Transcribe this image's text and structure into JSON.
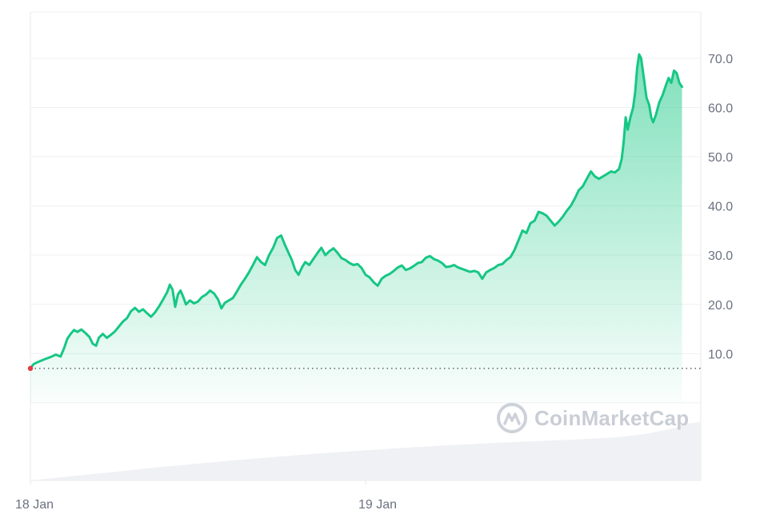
{
  "chart_data": {
    "type": "area",
    "title": "",
    "xlabel": "",
    "ylabel": "",
    "x_ticks": [
      "18 Jan",
      "19 Jan"
    ],
    "y_ticks": [
      10.0,
      20.0,
      30.0,
      40.0,
      50.0,
      60.0,
      70.0
    ],
    "y_tick_labels": [
      "10.0",
      "20.0",
      "30.0",
      "40.0",
      "50.0",
      "60.0",
      "70.0"
    ],
    "ylim": [
      -1.8,
      79.4
    ],
    "xlim": [
      0,
      100
    ],
    "reference_line": 7.0,
    "grid": true,
    "legend": "none",
    "series": [
      {
        "values": [
          [
            0.0,
            7.0
          ],
          [
            0.5,
            7.9
          ],
          [
            1.3,
            8.4
          ],
          [
            2.2,
            8.9
          ],
          [
            3.0,
            9.3
          ],
          [
            3.8,
            9.8
          ],
          [
            4.5,
            9.4
          ],
          [
            5.0,
            11.0
          ],
          [
            5.5,
            13.0
          ],
          [
            6.0,
            14.0
          ],
          [
            6.5,
            14.8
          ],
          [
            7.0,
            14.4
          ],
          [
            7.6,
            14.9
          ],
          [
            8.2,
            14.2
          ],
          [
            8.8,
            13.4
          ],
          [
            9.3,
            12.0
          ],
          [
            9.8,
            11.6
          ],
          [
            10.2,
            13.2
          ],
          [
            10.8,
            14.0
          ],
          [
            11.4,
            13.2
          ],
          [
            12.0,
            13.8
          ],
          [
            12.6,
            14.5
          ],
          [
            13.2,
            15.5
          ],
          [
            13.8,
            16.5
          ],
          [
            14.4,
            17.2
          ],
          [
            15.0,
            18.6
          ],
          [
            15.6,
            19.3
          ],
          [
            16.2,
            18.5
          ],
          [
            16.8,
            19.0
          ],
          [
            17.4,
            18.2
          ],
          [
            18.0,
            17.5
          ],
          [
            18.6,
            18.4
          ],
          [
            19.2,
            19.6
          ],
          [
            19.8,
            21.0
          ],
          [
            20.4,
            22.5
          ],
          [
            20.8,
            24.0
          ],
          [
            21.2,
            23.0
          ],
          [
            21.6,
            19.5
          ],
          [
            22.0,
            22.0
          ],
          [
            22.4,
            22.8
          ],
          [
            22.8,
            21.5
          ],
          [
            23.2,
            20.0
          ],
          [
            23.8,
            20.8
          ],
          [
            24.4,
            20.2
          ],
          [
            25.0,
            20.6
          ],
          [
            25.6,
            21.5
          ],
          [
            26.2,
            22.0
          ],
          [
            26.8,
            22.8
          ],
          [
            27.4,
            22.2
          ],
          [
            28.0,
            21.0
          ],
          [
            28.5,
            19.2
          ],
          [
            29.0,
            20.3
          ],
          [
            29.6,
            20.8
          ],
          [
            30.2,
            21.3
          ],
          [
            30.8,
            22.6
          ],
          [
            31.4,
            24.0
          ],
          [
            32.0,
            25.2
          ],
          [
            32.6,
            26.5
          ],
          [
            33.2,
            28.0
          ],
          [
            33.8,
            29.6
          ],
          [
            34.4,
            28.6
          ],
          [
            35.0,
            28.0
          ],
          [
            35.6,
            30.0
          ],
          [
            36.2,
            31.5
          ],
          [
            36.8,
            33.5
          ],
          [
            37.4,
            34.0
          ],
          [
            38.0,
            32.0
          ],
          [
            38.5,
            30.5
          ],
          [
            39.0,
            29.0
          ],
          [
            39.5,
            27.0
          ],
          [
            40.0,
            26.0
          ],
          [
            40.5,
            27.5
          ],
          [
            41.0,
            28.6
          ],
          [
            41.6,
            28.0
          ],
          [
            42.2,
            29.2
          ],
          [
            42.8,
            30.4
          ],
          [
            43.4,
            31.5
          ],
          [
            44.0,
            30.0
          ],
          [
            44.6,
            30.8
          ],
          [
            45.2,
            31.4
          ],
          [
            45.8,
            30.5
          ],
          [
            46.4,
            29.4
          ],
          [
            47.0,
            29.0
          ],
          [
            47.6,
            28.4
          ],
          [
            48.2,
            28.0
          ],
          [
            48.8,
            28.2
          ],
          [
            49.4,
            27.4
          ],
          [
            50.0,
            26.0
          ],
          [
            50.6,
            25.5
          ],
          [
            51.2,
            24.5
          ],
          [
            51.8,
            23.8
          ],
          [
            52.4,
            25.2
          ],
          [
            53.0,
            25.8
          ],
          [
            53.6,
            26.2
          ],
          [
            54.2,
            26.8
          ],
          [
            54.8,
            27.5
          ],
          [
            55.4,
            27.9
          ],
          [
            56.0,
            27.0
          ],
          [
            56.6,
            27.3
          ],
          [
            57.2,
            27.8
          ],
          [
            57.8,
            28.4
          ],
          [
            58.4,
            28.6
          ],
          [
            59.0,
            29.5
          ],
          [
            59.6,
            29.8
          ],
          [
            60.2,
            29.2
          ],
          [
            60.8,
            28.9
          ],
          [
            61.4,
            28.4
          ],
          [
            62.0,
            27.6
          ],
          [
            62.6,
            27.7
          ],
          [
            63.2,
            28.0
          ],
          [
            63.8,
            27.5
          ],
          [
            64.4,
            27.2
          ],
          [
            65.0,
            26.9
          ],
          [
            65.6,
            26.6
          ],
          [
            66.2,
            26.8
          ],
          [
            66.8,
            26.5
          ],
          [
            67.4,
            25.2
          ],
          [
            68.0,
            26.5
          ],
          [
            68.6,
            27.0
          ],
          [
            69.2,
            27.4
          ],
          [
            69.8,
            28.0
          ],
          [
            70.4,
            28.2
          ],
          [
            71.0,
            29.0
          ],
          [
            71.6,
            29.6
          ],
          [
            72.2,
            31.0
          ],
          [
            72.8,
            33.0
          ],
          [
            73.4,
            35.0
          ],
          [
            74.0,
            34.5
          ],
          [
            74.6,
            36.5
          ],
          [
            75.2,
            37.0
          ],
          [
            75.8,
            38.8
          ],
          [
            76.4,
            38.5
          ],
          [
            77.0,
            38.0
          ],
          [
            77.6,
            37.0
          ],
          [
            78.2,
            36.0
          ],
          [
            78.8,
            36.8
          ],
          [
            79.4,
            37.8
          ],
          [
            80.0,
            39.0
          ],
          [
            80.6,
            40.0
          ],
          [
            81.2,
            41.5
          ],
          [
            81.8,
            43.2
          ],
          [
            82.4,
            44.0
          ],
          [
            83.0,
            45.5
          ],
          [
            83.6,
            47.0
          ],
          [
            84.2,
            46.0
          ],
          [
            84.8,
            45.5
          ],
          [
            85.4,
            46.0
          ],
          [
            86.0,
            46.5
          ],
          [
            86.6,
            47.0
          ],
          [
            87.2,
            46.8
          ],
          [
            87.8,
            47.5
          ],
          [
            88.2,
            49.5
          ],
          [
            88.5,
            53.0
          ],
          [
            88.8,
            58.0
          ],
          [
            89.1,
            55.5
          ],
          [
            89.5,
            58.0
          ],
          [
            89.9,
            60.0
          ],
          [
            90.2,
            63.0
          ],
          [
            90.5,
            68.0
          ],
          [
            90.8,
            70.8
          ],
          [
            91.1,
            70.0
          ],
          [
            91.5,
            66.0
          ],
          [
            91.9,
            62.0
          ],
          [
            92.3,
            60.5
          ],
          [
            92.6,
            58.0
          ],
          [
            92.9,
            57.0
          ],
          [
            93.3,
            58.5
          ],
          [
            93.8,
            61.0
          ],
          [
            94.3,
            62.5
          ],
          [
            94.8,
            64.5
          ],
          [
            95.2,
            66.0
          ],
          [
            95.6,
            65.0
          ],
          [
            96.0,
            67.5
          ],
          [
            96.4,
            67.0
          ],
          [
            96.8,
            65.0
          ],
          [
            97.2,
            64.2
          ]
        ]
      }
    ]
  },
  "volume": {
    "values": [
      [
        0,
        0
      ],
      [
        10,
        0.1
      ],
      [
        20,
        0.2
      ],
      [
        30,
        0.29
      ],
      [
        40,
        0.37
      ],
      [
        50,
        0.44
      ],
      [
        60,
        0.5
      ],
      [
        70,
        0.55
      ],
      [
        80,
        0.59
      ],
      [
        88,
        0.63
      ],
      [
        92,
        0.68
      ],
      [
        96,
        0.76
      ],
      [
        97.5,
        0.82
      ],
      [
        100,
        0.85
      ]
    ]
  },
  "watermark": {
    "text": "CoinMarketCap",
    "icon": "coinmarketcap-logo-icon"
  },
  "colors": {
    "line": "#16c784",
    "area_top": "#16c784",
    "grid": "#eef0f3",
    "axis_text": "#6b7280",
    "reference_line": "#6b6f78",
    "start_marker": "#ea3943",
    "volume_fill": "#eff1f5"
  }
}
